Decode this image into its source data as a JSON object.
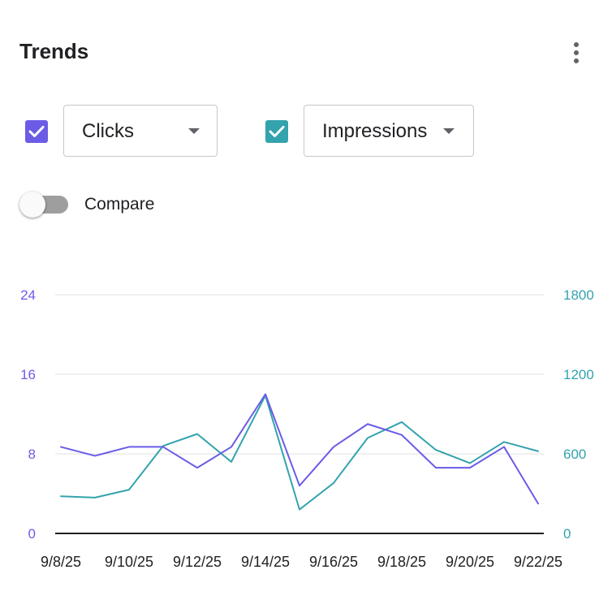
{
  "header": {
    "title": "Trends",
    "menu_icon": "more-vert-icon"
  },
  "metrics": [
    {
      "label": "Clicks",
      "checked": true,
      "color": "#6b5ce7"
    },
    {
      "label": "Impressions",
      "checked": true,
      "color": "#33a3ad"
    }
  ],
  "compare": {
    "label": "Compare",
    "on": false
  },
  "chart_data": {
    "type": "line",
    "x": [
      "9/8/25",
      "9/9/25",
      "9/10/25",
      "9/11/25",
      "9/12/25",
      "9/13/25",
      "9/14/25",
      "9/15/25",
      "9/16/25",
      "9/17/25",
      "9/18/25",
      "9/19/25",
      "9/20/25",
      "9/21/25",
      "9/22/25"
    ],
    "xticks": [
      "9/8/25",
      "9/10/25",
      "9/12/25",
      "9/14/25",
      "9/16/25",
      "9/18/25",
      "9/20/25",
      "9/22/25"
    ],
    "series": [
      {
        "name": "Clicks",
        "axis": "left",
        "color": "#6b5ce7",
        "values": [
          8.7,
          7.8,
          8.7,
          8.7,
          6.6,
          8.7,
          14.0,
          4.8,
          8.7,
          11.0,
          9.9,
          6.6,
          6.6,
          8.7,
          3.0
        ]
      },
      {
        "name": "Impressions",
        "axis": "right",
        "color": "#33a3ad",
        "values": [
          280,
          270,
          330,
          660,
          750,
          540,
          1040,
          180,
          380,
          720,
          840,
          630,
          530,
          690,
          620
        ]
      }
    ],
    "y_left": {
      "ticks": [
        "0",
        "8",
        "16",
        "24"
      ],
      "range": [
        0,
        24
      ],
      "color": "#6b5ce7"
    },
    "y_right": {
      "ticks": [
        "0",
        "600",
        "1200",
        "1800"
      ],
      "range": [
        0,
        1800
      ],
      "color": "#33a3ad"
    },
    "grid": true
  }
}
